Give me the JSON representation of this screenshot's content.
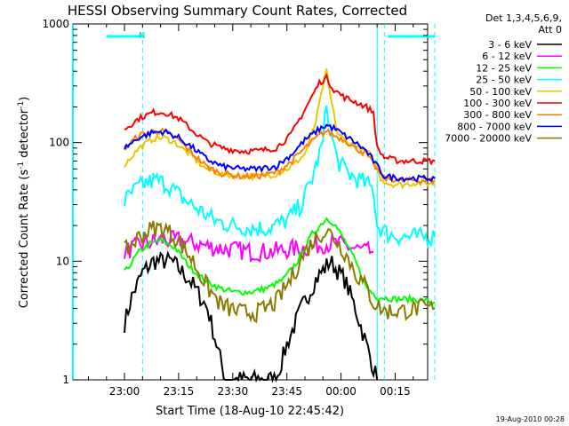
{
  "chart_data": {
    "type": "line",
    "title": "HESSI Observing Summary Count Rates, Corrected",
    "xlabel": "Start Time (18-Aug-10 22:45:42)",
    "ylabel": "Corrected Count Rate (s",
    "ylabel_sup1": "-1",
    "ylabel_mid": " detector",
    "ylabel_sup2": "-1",
    "ylabel_end": ")",
    "yscale": "log",
    "ylim": [
      1,
      1000
    ],
    "xlim": [
      "22:45:42",
      "00:24:00"
    ],
    "xticks": [
      "23:00",
      "23:15",
      "23:30",
      "23:45",
      "00:00",
      "00:15"
    ],
    "yticks": [
      "1",
      "10",
      "100",
      "1000"
    ],
    "legend_placement": "right",
    "legend_header": [
      "Det 1,3,4,5,6,9,",
      "Att 0"
    ],
    "timestamp": "19-Aug-2010 00:28",
    "night_flag": "N",
    "series": [
      {
        "name": "3 - 6 keV",
        "color": "#000000",
        "points": [
          [
            0,
            3
          ],
          [
            2,
            5
          ],
          [
            5,
            8
          ],
          [
            8,
            10
          ],
          [
            13,
            10
          ],
          [
            18,
            7
          ],
          [
            23,
            4
          ],
          [
            28,
            1
          ],
          [
            33,
            1
          ],
          [
            38,
            1
          ],
          [
            42,
            1
          ],
          [
            45,
            2
          ],
          [
            49,
            4
          ],
          [
            53,
            7
          ],
          [
            57,
            10
          ],
          [
            61,
            7
          ],
          [
            64,
            4
          ],
          [
            67,
            2
          ],
          [
            70,
            1
          ]
        ]
      },
      {
        "name": "6 - 12 keV",
        "color": "#ff00ff",
        "points": [
          [
            0,
            12
          ],
          [
            5,
            14
          ],
          [
            10,
            15
          ],
          [
            15,
            15
          ],
          [
            20,
            14
          ],
          [
            25,
            13
          ],
          [
            30,
            12.5
          ],
          [
            35,
            12
          ],
          [
            40,
            12
          ],
          [
            45,
            12.5
          ],
          [
            50,
            13
          ],
          [
            55,
            14
          ],
          [
            59,
            14
          ],
          [
            63,
            13
          ],
          [
            67,
            12
          ],
          [
            69,
            12
          ]
        ]
      },
      {
        "name": "12 - 25 keV",
        "color": "#00ff00",
        "points": [
          [
            0,
            8
          ],
          [
            4,
            12
          ],
          [
            7,
            14
          ],
          [
            10,
            15
          ],
          [
            14,
            13
          ],
          [
            18,
            9
          ],
          [
            22,
            7
          ],
          [
            26,
            6
          ],
          [
            30,
            5.5
          ],
          [
            35,
            5.5
          ],
          [
            40,
            6
          ],
          [
            44,
            7
          ],
          [
            48,
            10
          ],
          [
            52,
            17
          ],
          [
            56,
            23
          ],
          [
            58,
            21
          ],
          [
            61,
            15
          ],
          [
            64,
            10
          ],
          [
            67,
            6
          ],
          [
            70,
            5
          ],
          [
            75,
            4.8
          ],
          [
            80,
            4.8
          ],
          [
            86,
            4.5
          ]
        ]
      },
      {
        "name": "25 - 50 keV",
        "color": "#00ffff",
        "points": [
          [
            0,
            32
          ],
          [
            3,
            40
          ],
          [
            6,
            46
          ],
          [
            9,
            48
          ],
          [
            12,
            44
          ],
          [
            16,
            34
          ],
          [
            20,
            28
          ],
          [
            25,
            22
          ],
          [
            30,
            20
          ],
          [
            35,
            19
          ],
          [
            40,
            19
          ],
          [
            45,
            22
          ],
          [
            49,
            30
          ],
          [
            52,
            50
          ],
          [
            55,
            100
          ],
          [
            56,
            220
          ],
          [
            57,
            130
          ],
          [
            59,
            70
          ],
          [
            62,
            55
          ],
          [
            64,
            50
          ],
          [
            67,
            45
          ],
          [
            69,
            40
          ],
          [
            70,
            20
          ],
          [
            73,
            17
          ],
          [
            77,
            16
          ],
          [
            81,
            16
          ],
          [
            86,
            16
          ]
        ]
      },
      {
        "name": "50 - 100 keV",
        "color": "#e5c800",
        "points": [
          [
            0,
            65
          ],
          [
            4,
            90
          ],
          [
            8,
            108
          ],
          [
            11,
            110
          ],
          [
            14,
            100
          ],
          [
            18,
            80
          ],
          [
            22,
            62
          ],
          [
            27,
            54
          ],
          [
            32,
            52
          ],
          [
            37,
            52
          ],
          [
            42,
            54
          ],
          [
            46,
            62
          ],
          [
            50,
            80
          ],
          [
            53,
            150
          ],
          [
            55,
            300
          ],
          [
            56,
            400
          ],
          [
            57,
            250
          ],
          [
            59,
            120
          ],
          [
            62,
            100
          ],
          [
            65,
            90
          ],
          [
            68,
            80
          ],
          [
            69,
            70
          ],
          [
            71,
            50
          ],
          [
            73,
            45
          ],
          [
            77,
            44
          ],
          [
            81,
            46
          ],
          [
            86,
            45
          ]
        ]
      },
      {
        "name": "100 - 300 keV",
        "color": "#ff0000",
        "points": [
          [
            0,
            130
          ],
          [
            4,
            160
          ],
          [
            8,
            180
          ],
          [
            11,
            180
          ],
          [
            15,
            160
          ],
          [
            19,
            125
          ],
          [
            23,
            100
          ],
          [
            27,
            90
          ],
          [
            32,
            85
          ],
          [
            37,
            85
          ],
          [
            42,
            90
          ],
          [
            46,
            115
          ],
          [
            50,
            190
          ],
          [
            54,
            320
          ],
          [
            56,
            350
          ],
          [
            58,
            280
          ],
          [
            61,
            240
          ],
          [
            64,
            220
          ],
          [
            67,
            200
          ],
          [
            69,
            180
          ],
          [
            70,
            90
          ],
          [
            72,
            75
          ],
          [
            76,
            70
          ],
          [
            81,
            70
          ],
          [
            86,
            70
          ]
        ]
      },
      {
        "name": "300 - 800 keV",
        "color": "#ff8000",
        "points": [
          [
            0,
            90
          ],
          [
            4,
            115
          ],
          [
            8,
            125
          ],
          [
            11,
            124
          ],
          [
            15,
            105
          ],
          [
            19,
            80
          ],
          [
            23,
            62
          ],
          [
            27,
            55
          ],
          [
            32,
            52
          ],
          [
            37,
            52
          ],
          [
            42,
            56
          ],
          [
            46,
            68
          ],
          [
            50,
            90
          ],
          [
            54,
            115
          ],
          [
            56,
            125
          ],
          [
            58,
            115
          ],
          [
            61,
            105
          ],
          [
            64,
            90
          ],
          [
            67,
            80
          ],
          [
            69,
            65
          ],
          [
            72,
            50
          ],
          [
            77,
            48
          ],
          [
            81,
            48
          ],
          [
            86,
            48
          ]
        ]
      },
      {
        "name": "800 - 7000 keV",
        "color": "#0000ff",
        "points": [
          [
            0,
            90
          ],
          [
            4,
            110
          ],
          [
            8,
            122
          ],
          [
            11,
            124
          ],
          [
            15,
            110
          ],
          [
            19,
            90
          ],
          [
            23,
            72
          ],
          [
            27,
            63
          ],
          [
            32,
            60
          ],
          [
            37,
            60
          ],
          [
            42,
            63
          ],
          [
            46,
            78
          ],
          [
            50,
            105
          ],
          [
            54,
            130
          ],
          [
            56,
            140
          ],
          [
            58,
            132
          ],
          [
            61,
            115
          ],
          [
            64,
            100
          ],
          [
            67,
            85
          ],
          [
            69,
            70
          ],
          [
            72,
            52
          ],
          [
            77,
            50
          ],
          [
            81,
            50
          ],
          [
            86,
            50
          ]
        ]
      },
      {
        "name": "7000 - 20000 keV",
        "color": "#8b7a00",
        "points": [
          [
            0,
            12
          ],
          [
            4,
            16
          ],
          [
            8,
            19
          ],
          [
            11,
            19
          ],
          [
            15,
            15
          ],
          [
            19,
            10
          ],
          [
            23,
            6
          ],
          [
            27,
            4.2
          ],
          [
            32,
            3.7
          ],
          [
            37,
            3.7
          ],
          [
            42,
            4.5
          ],
          [
            46,
            7
          ],
          [
            50,
            12
          ],
          [
            54,
            17
          ],
          [
            56,
            18
          ],
          [
            58,
            16
          ],
          [
            61,
            12
          ],
          [
            64,
            8
          ],
          [
            67,
            6
          ],
          [
            69,
            4.5
          ],
          [
            72,
            3.8
          ],
          [
            77,
            3.8
          ],
          [
            81,
            4
          ],
          [
            86,
            4
          ]
        ]
      }
    ],
    "attenuator_segments": [
      [
        -5,
        5
      ],
      [
        73,
        86
      ]
    ],
    "night_boundaries": [
      5,
      72,
      86
    ],
    "sunlight_boundary": 70
  }
}
